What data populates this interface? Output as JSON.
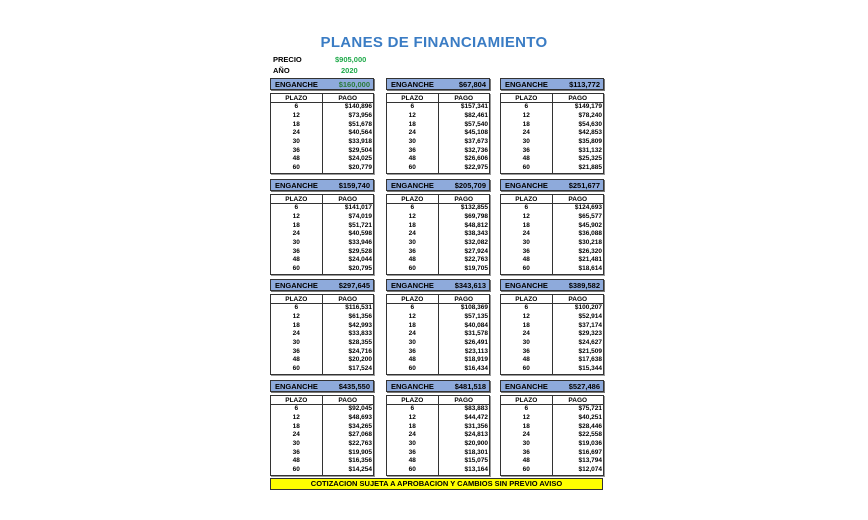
{
  "title": "PLANES DE FINANCIAMIENTO",
  "precio_label": "PRECIO",
  "precio": "$905,000",
  "anio_label": "AÑO",
  "anio": "2020",
  "enganche_label": "ENGANCHE",
  "plazo_header": "PLAZO",
  "pago_header": "PAGO",
  "plazos": [
    "6",
    "12",
    "18",
    "24",
    "30",
    "36",
    "48",
    "60"
  ],
  "plans": [
    {
      "enganche": "$160,000",
      "pagos": [
        "$140,896",
        "$73,956",
        "$51,678",
        "$40,564",
        "$33,918",
        "$29,504",
        "$24,025",
        "$20,779"
      ]
    },
    {
      "enganche": "$67,804",
      "pagos": [
        "$157,341",
        "$82,461",
        "$57,540",
        "$45,108",
        "$37,673",
        "$32,736",
        "$26,606",
        "$22,975"
      ]
    },
    {
      "enganche": "$113,772",
      "pagos": [
        "$149,179",
        "$78,240",
        "$54,630",
        "$42,853",
        "$35,809",
        "$31,132",
        "$25,325",
        "$21,885"
      ]
    },
    {
      "enganche": "$159,740",
      "pagos": [
        "$141,017",
        "$74,019",
        "$51,721",
        "$40,598",
        "$33,946",
        "$29,528",
        "$24,044",
        "$20,795"
      ]
    },
    {
      "enganche": "$205,709",
      "pagos": [
        "$132,855",
        "$69,798",
        "$48,812",
        "$38,343",
        "$32,082",
        "$27,924",
        "$22,763",
        "$19,705"
      ]
    },
    {
      "enganche": "$251,677",
      "pagos": [
        "$124,693",
        "$65,577",
        "$45,902",
        "$36,088",
        "$30,218",
        "$26,320",
        "$21,481",
        "$18,614"
      ]
    },
    {
      "enganche": "$297,645",
      "pagos": [
        "$116,531",
        "$61,356",
        "$42,993",
        "$33,833",
        "$28,355",
        "$24,716",
        "$20,200",
        "$17,524"
      ]
    },
    {
      "enganche": "$343,613",
      "pagos": [
        "$108,369",
        "$57,135",
        "$40,084",
        "$31,578",
        "$26,491",
        "$23,113",
        "$18,919",
        "$16,434"
      ]
    },
    {
      "enganche": "$389,582",
      "pagos": [
        "$100,207",
        "$52,914",
        "$37,174",
        "$29,323",
        "$24,627",
        "$21,509",
        "$17,638",
        "$15,344"
      ]
    },
    {
      "enganche": "$435,550",
      "pagos": [
        "$92,045",
        "$48,693",
        "$34,265",
        "$27,068",
        "$22,763",
        "$19,905",
        "$16,356",
        "$14,254"
      ]
    },
    {
      "enganche": "$481,518",
      "pagos": [
        "$83,883",
        "$44,472",
        "$31,356",
        "$24,813",
        "$20,900",
        "$18,301",
        "$15,075",
        "$13,164"
      ]
    },
    {
      "enganche": "$527,486",
      "pagos": [
        "$75,721",
        "$40,251",
        "$28,446",
        "$22,558",
        "$19,036",
        "$16,697",
        "$13,794",
        "$12,074"
      ]
    }
  ],
  "footer": "COTIZACION SUJETA A APROBACION Y CAMBIOS SIN PREVIO AVISO",
  "colors": {
    "title": "#3a7cc4",
    "header_band": "#8eaadb",
    "green": "#1faa4a",
    "footer_bg": "#ffff00"
  }
}
